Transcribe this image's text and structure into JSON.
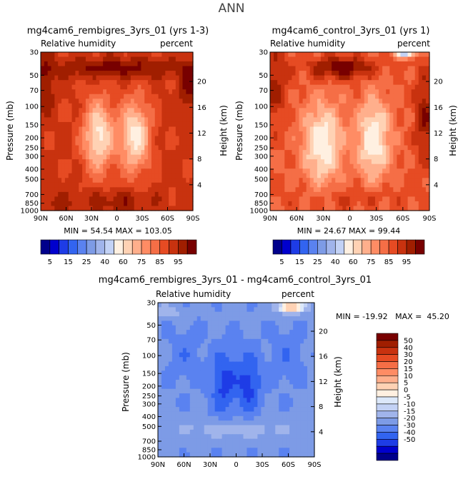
{
  "figure_title": "ANN",
  "colors": {
    "ramp": [
      "#00008b",
      "#0000cd",
      "#1e3ce6",
      "#3264f0",
      "#5a82f0",
      "#7d9be6",
      "#a0b4eb",
      "#c3d2f5",
      "#fff0e1",
      "#ffd2b4",
      "#ffaf8c",
      "#ff8c64",
      "#f56e46",
      "#e64b23",
      "#c8320f",
      "#a01e00",
      "#780000"
    ],
    "ramp_diff": [
      "#00008b",
      "#0000cd",
      "#1e3ce6",
      "#3264f0",
      "#5a82f0",
      "#7d9be6",
      "#a0b4eb",
      "#c3d2f5",
      "#dce8fa",
      "#fff0e1",
      "#ffd2b4",
      "#ffaf8c",
      "#ff8c64",
      "#f56e46",
      "#e64b23",
      "#c8320f",
      "#a01e00",
      "#780000"
    ]
  },
  "chart_data": [
    {
      "type": "heatmap",
      "title": "mg4cam6_rembigres_3yrs_01 (yrs 1-3)",
      "subtitle_left": "Relative humidity",
      "subtitle_right": "percent",
      "ylabel_left": "Pressure (mb)",
      "ylabel_right": "Height (km)",
      "x_ticks": [
        "90N",
        "60N",
        "30N",
        "0",
        "30S",
        "60S",
        "90S"
      ],
      "y_ticks": [
        "30",
        "50",
        "70",
        "100",
        "150",
        "200",
        "250",
        "300",
        "400",
        "500",
        "700",
        "850",
        "1000"
      ],
      "height_ticks": [
        "20",
        "16",
        "12",
        "8",
        "4"
      ],
      "stats": "MIN =  54.54   MAX = 103.05",
      "min": 54.54,
      "max": 103.05,
      "colorbar_labels": [
        "5",
        "15",
        "25",
        "40",
        "60",
        "75",
        "85",
        "95"
      ],
      "field": "rem"
    },
    {
      "type": "heatmap",
      "title": "mg4cam6_control_3yrs_01 (yrs 1)",
      "subtitle_left": "Relative humidity",
      "subtitle_right": "percent",
      "ylabel_left": "Pressure (mb)",
      "ylabel_right": "Height (km)",
      "x_ticks": [
        "90N",
        "60N",
        "30N",
        "0",
        "30S",
        "60S",
        "90S"
      ],
      "y_ticks": [
        "30",
        "50",
        "70",
        "100",
        "150",
        "200",
        "250",
        "300",
        "400",
        "500",
        "700",
        "850",
        "1000"
      ],
      "height_ticks": [
        "20",
        "16",
        "12",
        "8",
        "4"
      ],
      "stats": "MIN =  24.67   MAX =  99.44",
      "min": 24.67,
      "max": 99.44,
      "colorbar_labels": [
        "5",
        "15",
        "25",
        "40",
        "60",
        "75",
        "85",
        "95"
      ],
      "field": "ctl"
    },
    {
      "type": "heatmap",
      "title": "mg4cam6_rembigres_3yrs_01 - mg4cam6_control_3yrs_01",
      "subtitle_left": "Relative humidity",
      "subtitle_right": "percent",
      "ylabel_left": "Pressure (mb)",
      "ylabel_right": "Height (km)",
      "x_ticks": [
        "90N",
        "60N",
        "30N",
        "0",
        "30S",
        "60S",
        "90S"
      ],
      "y_ticks": [
        "30",
        "50",
        "70",
        "100",
        "150",
        "200",
        "250",
        "300",
        "400",
        "500",
        "700",
        "850",
        "1000"
      ],
      "height_ticks": [
        "20",
        "16",
        "12",
        "8",
        "4"
      ],
      "stats": "MIN = -19.92   MAX =  45.20",
      "min": -19.92,
      "max": 45.2,
      "colorbar_labels": [
        "50",
        "40",
        "30",
        "20",
        "15",
        "10",
        "5",
        "0",
        "-5",
        "-10",
        "-15",
        "-20",
        "-30",
        "-40",
        "-50"
      ],
      "field": "diff"
    }
  ]
}
